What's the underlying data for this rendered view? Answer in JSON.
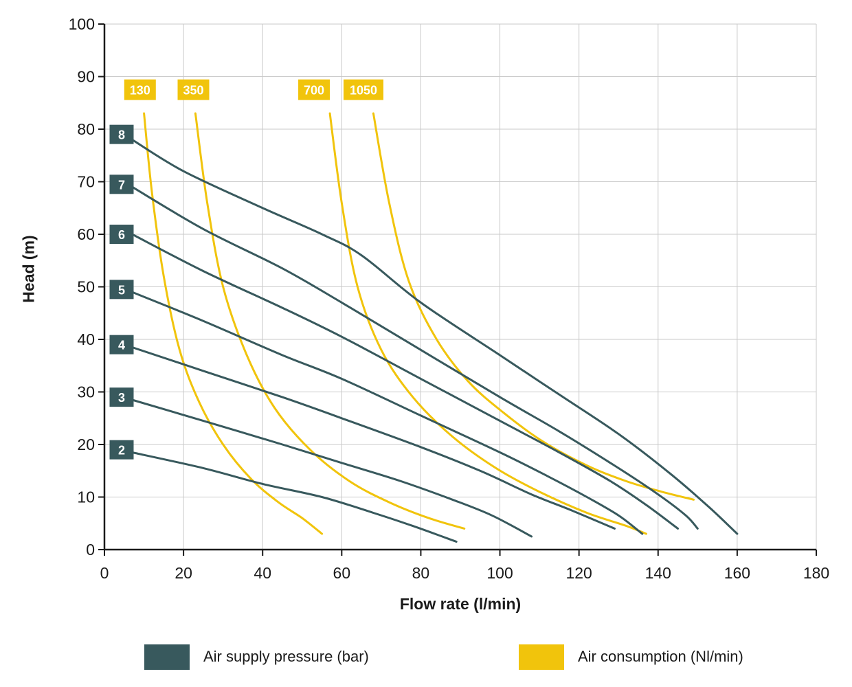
{
  "chart_data": {
    "type": "line",
    "title": "",
    "xlabel": "Flow rate (l/min)",
    "ylabel": "Head (m)",
    "xlim": [
      0,
      180
    ],
    "ylim": [
      0,
      100
    ],
    "xticks": [
      0,
      20,
      40,
      60,
      80,
      100,
      120,
      140,
      160,
      180
    ],
    "yticks": [
      0,
      10,
      20,
      30,
      40,
      50,
      60,
      70,
      80,
      90,
      100
    ],
    "grid": true,
    "legend_position": "bottom",
    "colors": {
      "pressure": "#38595d",
      "consumption": "#f1c40c",
      "grid": "#c9c9c9",
      "axis": "#1a1a1a",
      "badge_text": "#ffffff"
    },
    "pressure_curves": [
      {
        "bar": "8",
        "badge_head": 79,
        "points": [
          [
            7,
            78
          ],
          [
            20,
            72
          ],
          [
            40,
            65
          ],
          [
            55,
            60
          ],
          [
            65,
            56
          ],
          [
            80,
            47
          ],
          [
            100,
            37
          ],
          [
            115,
            29.5
          ],
          [
            130,
            22
          ],
          [
            143,
            14.5
          ],
          [
            153,
            8
          ],
          [
            160,
            3
          ]
        ]
      },
      {
        "bar": "7",
        "badge_head": 69.5,
        "points": [
          [
            7,
            69
          ],
          [
            25,
            61
          ],
          [
            45,
            53.5
          ],
          [
            60,
            47
          ],
          [
            80,
            38
          ],
          [
            100,
            29
          ],
          [
            115,
            22.5
          ],
          [
            130,
            15.5
          ],
          [
            140,
            10.5
          ],
          [
            147,
            6.5
          ],
          [
            150,
            4
          ]
        ]
      },
      {
        "bar": "6",
        "badge_head": 60,
        "points": [
          [
            7,
            60
          ],
          [
            25,
            53
          ],
          [
            45,
            46
          ],
          [
            60,
            40.5
          ],
          [
            80,
            32.5
          ],
          [
            100,
            24.5
          ],
          [
            115,
            18.5
          ],
          [
            128,
            13
          ],
          [
            137,
            8.5
          ],
          [
            145,
            4
          ]
        ]
      },
      {
        "bar": "5",
        "badge_head": 49.5,
        "points": [
          [
            7,
            49
          ],
          [
            25,
            43.5
          ],
          [
            45,
            37
          ],
          [
            60,
            32.5
          ],
          [
            80,
            25.5
          ],
          [
            100,
            18.5
          ],
          [
            112,
            14
          ],
          [
            122,
            10
          ],
          [
            130,
            6.5
          ],
          [
            136,
            3
          ]
        ]
      },
      {
        "bar": "4",
        "badge_head": 39,
        "points": [
          [
            7,
            38.5
          ],
          [
            25,
            34
          ],
          [
            45,
            29
          ],
          [
            60,
            25
          ],
          [
            80,
            19.5
          ],
          [
            95,
            15
          ],
          [
            108,
            10.5
          ],
          [
            118,
            7.5
          ],
          [
            129,
            4
          ]
        ]
      },
      {
        "bar": "3",
        "badge_head": 29,
        "points": [
          [
            7,
            28.5
          ],
          [
            25,
            24.5
          ],
          [
            45,
            20
          ],
          [
            60,
            16.5
          ],
          [
            75,
            13
          ],
          [
            88,
            9.5
          ],
          [
            98,
            6.5
          ],
          [
            108,
            2.5
          ]
        ]
      },
      {
        "bar": "2",
        "badge_head": 19,
        "points": [
          [
            7,
            18.5
          ],
          [
            25,
            15.5
          ],
          [
            40,
            12.5
          ],
          [
            55,
            10
          ],
          [
            68,
            7
          ],
          [
            78,
            4.5
          ],
          [
            89,
            1.5
          ]
        ]
      }
    ],
    "consumption_curves": [
      {
        "nl_min": "130",
        "badge_flow": 9,
        "badge_head": 87.5,
        "points": [
          [
            10,
            83
          ],
          [
            12,
            68
          ],
          [
            15,
            52
          ],
          [
            19,
            38
          ],
          [
            24,
            28
          ],
          [
            30,
            20
          ],
          [
            37,
            13.5
          ],
          [
            44,
            9
          ],
          [
            50,
            6
          ],
          [
            55,
            3
          ]
        ]
      },
      {
        "nl_min": "350",
        "badge_flow": 22.5,
        "badge_head": 87.5,
        "points": [
          [
            23,
            83
          ],
          [
            26,
            66
          ],
          [
            30,
            50
          ],
          [
            36,
            37
          ],
          [
            43,
            27
          ],
          [
            52,
            19
          ],
          [
            62,
            13
          ],
          [
            72,
            9
          ],
          [
            82,
            6
          ],
          [
            91,
            4
          ]
        ]
      },
      {
        "nl_min": "700",
        "badge_flow": 53,
        "badge_head": 87.5,
        "points": [
          [
            57,
            83
          ],
          [
            60,
            66
          ],
          [
            64,
            50
          ],
          [
            70,
            38
          ],
          [
            78,
            29
          ],
          [
            88,
            21.5
          ],
          [
            99,
            15.5
          ],
          [
            110,
            11
          ],
          [
            122,
            7
          ],
          [
            132,
            4.5
          ],
          [
            137,
            3
          ]
        ]
      },
      {
        "nl_min": "1050",
        "badge_flow": 65.5,
        "badge_head": 87.5,
        "points": [
          [
            68,
            83
          ],
          [
            72,
            66
          ],
          [
            77,
            51
          ],
          [
            84,
            40
          ],
          [
            92,
            32
          ],
          [
            101,
            26
          ],
          [
            111,
            20.5
          ],
          [
            122,
            16
          ],
          [
            132,
            13
          ],
          [
            141,
            11
          ],
          [
            149,
            9.5
          ]
        ]
      }
    ],
    "legend": [
      {
        "label": "Air supply pressure (bar)",
        "color": "#38595d"
      },
      {
        "label": "Air consumption (Nl/min)",
        "color": "#f1c40c"
      }
    ]
  }
}
